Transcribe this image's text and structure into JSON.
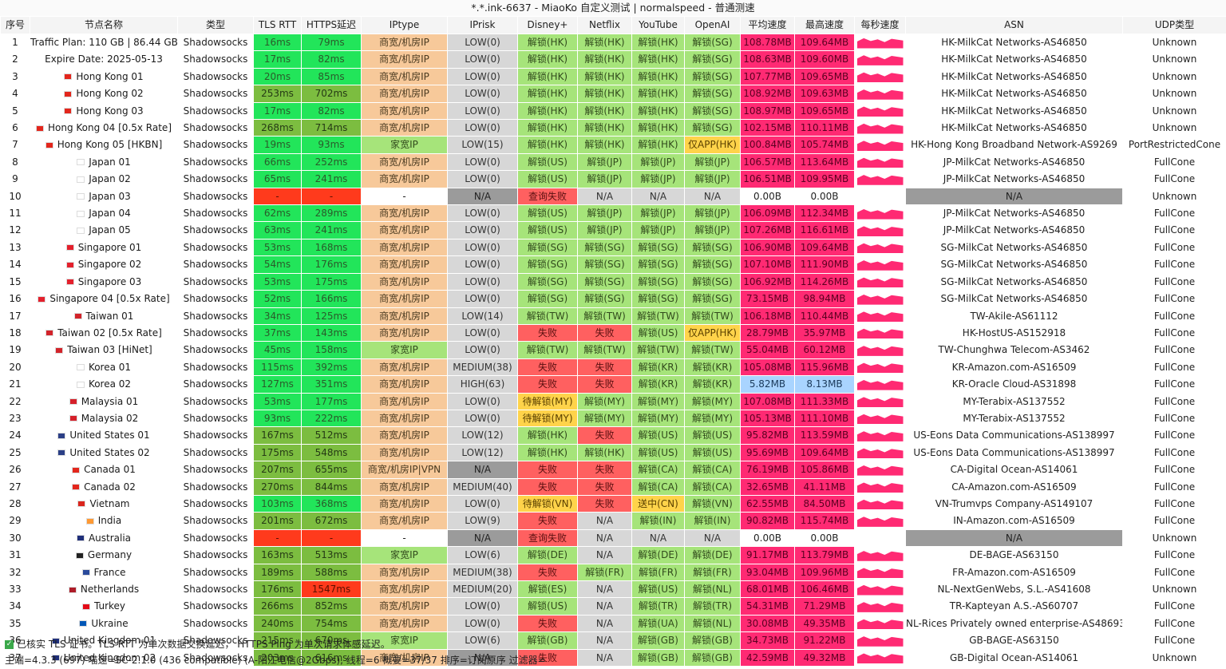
{
  "window_title": "*.*.ink-6637 - MiaoKo 自定义测试 | normalspeed - 普通测速",
  "columns": [
    "序号",
    "节点名称",
    "类型",
    "TLS RTT",
    "HTTPS延迟",
    "IPtype",
    "IPrisk",
    "Disney+",
    "Netflix",
    "YouTube",
    "OpenAI",
    "平均速度",
    "最高速度",
    "每秒速度",
    "ASN",
    "UDP类型"
  ],
  "rows": [
    {
      "idx": "1",
      "name": "Traffic Plan: 110 GB | 86.44 GB",
      "type": "Shadowsocks",
      "tls": "16ms",
      "https": "79ms",
      "iptype": "商宽/机房IP",
      "iprisk": "LOW(0)",
      "disney": "解锁(HK)",
      "netflix": "解锁(HK)",
      "youtube": "解锁(HK)",
      "openai": "解锁(SG)",
      "avg": "108.78MB",
      "max": "109.64MB",
      "asn": "HK-MilkCat Networks-AS46850",
      "udp": "Unknown"
    },
    {
      "idx": "2",
      "name": "Expire Date: 2025-05-13",
      "type": "Shadowsocks",
      "tls": "17ms",
      "https": "82ms",
      "iptype": "商宽/机房IP",
      "iprisk": "LOW(0)",
      "disney": "解锁(HK)",
      "netflix": "解锁(HK)",
      "youtube": "解锁(HK)",
      "openai": "解锁(SG)",
      "avg": "108.63MB",
      "max": "109.60MB",
      "asn": "HK-MilkCat Networks-AS46850",
      "udp": "Unknown"
    },
    {
      "idx": "3",
      "name": "Hong Kong 01",
      "type": "Shadowsocks",
      "tls": "20ms",
      "https": "85ms",
      "iptype": "商宽/机房IP",
      "iprisk": "LOW(0)",
      "disney": "解锁(HK)",
      "netflix": "解锁(HK)",
      "youtube": "解锁(HK)",
      "openai": "解锁(SG)",
      "avg": "107.77MB",
      "max": "109.65MB",
      "asn": "HK-MilkCat Networks-AS46850",
      "udp": "Unknown"
    },
    {
      "idx": "4",
      "name": "Hong Kong 02",
      "type": "Shadowsocks",
      "tls": "253ms",
      "https": "702ms",
      "iptype": "商宽/机房IP",
      "iprisk": "LOW(0)",
      "disney": "解锁(HK)",
      "netflix": "解锁(HK)",
      "youtube": "解锁(HK)",
      "openai": "解锁(SG)",
      "avg": "108.92MB",
      "max": "109.63MB",
      "asn": "HK-MilkCat Networks-AS46850",
      "udp": "Unknown"
    },
    {
      "idx": "5",
      "name": "Hong Kong 03",
      "type": "Shadowsocks",
      "tls": "17ms",
      "https": "82ms",
      "iptype": "商宽/机房IP",
      "iprisk": "LOW(0)",
      "disney": "解锁(HK)",
      "netflix": "解锁(HK)",
      "youtube": "解锁(HK)",
      "openai": "解锁(SG)",
      "avg": "108.97MB",
      "max": "109.65MB",
      "asn": "HK-MilkCat Networks-AS46850",
      "udp": "Unknown"
    },
    {
      "idx": "6",
      "name": "Hong Kong 04 [0.5x Rate]",
      "type": "Shadowsocks",
      "tls": "268ms",
      "https": "714ms",
      "iptype": "商宽/机房IP",
      "iprisk": "LOW(0)",
      "disney": "解锁(HK)",
      "netflix": "解锁(HK)",
      "youtube": "解锁(HK)",
      "openai": "解锁(SG)",
      "avg": "102.15MB",
      "max": "110.11MB",
      "asn": "HK-MilkCat Networks-AS46850",
      "udp": "Unknown"
    },
    {
      "idx": "7",
      "name": "Hong Kong 05 [HKBN]",
      "type": "Shadowsocks",
      "tls": "19ms",
      "https": "93ms",
      "iptype": "家宽IP",
      "iprisk": "LOW(15)",
      "disney": "解锁(HK)",
      "netflix": "解锁(HK)",
      "youtube": "解锁(HK)",
      "openai": "仅APP(HK)",
      "avg": "100.84MB",
      "max": "105.74MB",
      "asn": "HK-Hong Kong Broadband Network-AS9269",
      "udp": "PortRestrictedCone"
    },
    {
      "idx": "8",
      "name": "Japan 01",
      "type": "Shadowsocks",
      "tls": "66ms",
      "https": "252ms",
      "iptype": "商宽/机房IP",
      "iprisk": "LOW(0)",
      "disney": "解锁(US)",
      "netflix": "解锁(JP)",
      "youtube": "解锁(JP)",
      "openai": "解锁(JP)",
      "avg": "106.57MB",
      "max": "113.64MB",
      "asn": "JP-MilkCat Networks-AS46850",
      "udp": "FullCone"
    },
    {
      "idx": "9",
      "name": "Japan 02",
      "type": "Shadowsocks",
      "tls": "65ms",
      "https": "241ms",
      "iptype": "商宽/机房IP",
      "iprisk": "LOW(0)",
      "disney": "解锁(US)",
      "netflix": "解锁(JP)",
      "youtube": "解锁(JP)",
      "openai": "解锁(JP)",
      "avg": "106.51MB",
      "max": "109.95MB",
      "asn": "JP-MilkCat Networks-AS46850",
      "udp": "FullCone"
    },
    {
      "idx": "10",
      "name": "Japan 03",
      "type": "Shadowsocks",
      "tls": "-",
      "https": "-",
      "iptype": "-",
      "iprisk": "N/A",
      "disney": "查询失败",
      "netflix": "N/A",
      "youtube": "N/A",
      "openai": "N/A",
      "avg": "0.00B",
      "max": "0.00B",
      "asn": "N/A",
      "udp": "Unknown"
    },
    {
      "idx": "11",
      "name": "Japan 04",
      "type": "Shadowsocks",
      "tls": "62ms",
      "https": "289ms",
      "iptype": "商宽/机房IP",
      "iprisk": "LOW(0)",
      "disney": "解锁(US)",
      "netflix": "解锁(JP)",
      "youtube": "解锁(JP)",
      "openai": "解锁(JP)",
      "avg": "106.09MB",
      "max": "112.34MB",
      "asn": "JP-MilkCat Networks-AS46850",
      "udp": "FullCone"
    },
    {
      "idx": "12",
      "name": "Japan 05",
      "type": "Shadowsocks",
      "tls": "63ms",
      "https": "241ms",
      "iptype": "商宽/机房IP",
      "iprisk": "LOW(0)",
      "disney": "解锁(US)",
      "netflix": "解锁(JP)",
      "youtube": "解锁(JP)",
      "openai": "解锁(JP)",
      "avg": "107.26MB",
      "max": "116.61MB",
      "asn": "JP-MilkCat Networks-AS46850",
      "udp": "FullCone"
    },
    {
      "idx": "13",
      "name": "Singapore 01",
      "type": "Shadowsocks",
      "tls": "53ms",
      "https": "168ms",
      "iptype": "商宽/机房IP",
      "iprisk": "LOW(0)",
      "disney": "解锁(SG)",
      "netflix": "解锁(SG)",
      "youtube": "解锁(SG)",
      "openai": "解锁(SG)",
      "avg": "106.90MB",
      "max": "109.64MB",
      "asn": "SG-MilkCat Networks-AS46850",
      "udp": "FullCone"
    },
    {
      "idx": "14",
      "name": "Singapore 02",
      "type": "Shadowsocks",
      "tls": "54ms",
      "https": "176ms",
      "iptype": "商宽/机房IP",
      "iprisk": "LOW(0)",
      "disney": "解锁(SG)",
      "netflix": "解锁(SG)",
      "youtube": "解锁(SG)",
      "openai": "解锁(SG)",
      "avg": "107.10MB",
      "max": "111.90MB",
      "asn": "SG-MilkCat Networks-AS46850",
      "udp": "FullCone"
    },
    {
      "idx": "15",
      "name": "Singapore 03",
      "type": "Shadowsocks",
      "tls": "53ms",
      "https": "175ms",
      "iptype": "商宽/机房IP",
      "iprisk": "LOW(0)",
      "disney": "解锁(SG)",
      "netflix": "解锁(SG)",
      "youtube": "解锁(SG)",
      "openai": "解锁(SG)",
      "avg": "106.92MB",
      "max": "114.26MB",
      "asn": "SG-MilkCat Networks-AS46850",
      "udp": "FullCone"
    },
    {
      "idx": "16",
      "name": "Singapore 04 [0.5x Rate]",
      "type": "Shadowsocks",
      "tls": "52ms",
      "https": "166ms",
      "iptype": "商宽/机房IP",
      "iprisk": "LOW(0)",
      "disney": "解锁(SG)",
      "netflix": "解锁(SG)",
      "youtube": "解锁(SG)",
      "openai": "解锁(SG)",
      "avg": "73.15MB",
      "max": "98.94MB",
      "asn": "SG-MilkCat Networks-AS46850",
      "udp": "FullCone"
    },
    {
      "idx": "17",
      "name": "Taiwan 01",
      "type": "Shadowsocks",
      "tls": "34ms",
      "https": "125ms",
      "iptype": "商宽/机房IP",
      "iprisk": "LOW(14)",
      "disney": "解锁(TW)",
      "netflix": "解锁(TW)",
      "youtube": "解锁(TW)",
      "openai": "解锁(TW)",
      "avg": "106.18MB",
      "max": "110.44MB",
      "asn": "TW-Akile-AS61112",
      "udp": "FullCone"
    },
    {
      "idx": "18",
      "name": "Taiwan 02 [0.5x Rate]",
      "type": "Shadowsocks",
      "tls": "37ms",
      "https": "143ms",
      "iptype": "商宽/机房IP",
      "iprisk": "LOW(0)",
      "disney": "失败",
      "netflix": "失败",
      "youtube": "解锁(US)",
      "openai": "仅APP(HK)",
      "avg": "28.79MB",
      "max": "35.97MB",
      "asn": "HK-HostUS-AS152918",
      "udp": "FullCone"
    },
    {
      "idx": "19",
      "name": "Taiwan 03 [HiNet]",
      "type": "Shadowsocks",
      "tls": "45ms",
      "https": "158ms",
      "iptype": "家宽IP",
      "iprisk": "LOW(0)",
      "disney": "解锁(TW)",
      "netflix": "解锁(TW)",
      "youtube": "解锁(TW)",
      "openai": "解锁(TW)",
      "avg": "55.04MB",
      "max": "60.12MB",
      "asn": "TW-Chunghwa Telecom-AS3462",
      "udp": "FullCone"
    },
    {
      "idx": "20",
      "name": "Korea 01",
      "type": "Shadowsocks",
      "tls": "115ms",
      "https": "392ms",
      "iptype": "商宽/机房IP",
      "iprisk": "MEDIUM(38)",
      "disney": "失败",
      "netflix": "失败",
      "youtube": "解锁(KR)",
      "openai": "解锁(KR)",
      "avg": "105.08MB",
      "max": "115.96MB",
      "asn": "KR-Amazon.com-AS16509",
      "udp": "FullCone"
    },
    {
      "idx": "21",
      "name": "Korea 02",
      "type": "Shadowsocks",
      "tls": "127ms",
      "https": "351ms",
      "iptype": "商宽/机房IP",
      "iprisk": "HIGH(63)",
      "disney": "失败",
      "netflix": "失败",
      "youtube": "解锁(KR)",
      "openai": "解锁(KR)",
      "avg": "5.82MB",
      "max": "8.13MB",
      "asn": "KR-Oracle Cloud-AS31898",
      "udp": "FullCone"
    },
    {
      "idx": "22",
      "name": "Malaysia 01",
      "type": "Shadowsocks",
      "tls": "53ms",
      "https": "177ms",
      "iptype": "商宽/机房IP",
      "iprisk": "LOW(0)",
      "disney": "待解锁(MY)",
      "netflix": "解锁(MY)",
      "youtube": "解锁(MY)",
      "openai": "解锁(MY)",
      "avg": "107.08MB",
      "max": "111.33MB",
      "asn": "MY-Terabix-AS137552",
      "udp": "FullCone"
    },
    {
      "idx": "23",
      "name": "Malaysia 02",
      "type": "Shadowsocks",
      "tls": "93ms",
      "https": "222ms",
      "iptype": "商宽/机房IP",
      "iprisk": "LOW(0)",
      "disney": "待解锁(MY)",
      "netflix": "解锁(MY)",
      "youtube": "解锁(MY)",
      "openai": "解锁(MY)",
      "avg": "105.13MB",
      "max": "111.10MB",
      "asn": "MY-Terabix-AS137552",
      "udp": "FullCone"
    },
    {
      "idx": "24",
      "name": "United States 01",
      "type": "Shadowsocks",
      "tls": "167ms",
      "https": "512ms",
      "iptype": "商宽/机房IP",
      "iprisk": "LOW(12)",
      "disney": "解锁(HK)",
      "netflix": "失败",
      "youtube": "解锁(US)",
      "openai": "解锁(US)",
      "avg": "95.82MB",
      "max": "113.59MB",
      "asn": "US-Eons Data Communications-AS138997",
      "udp": "FullCone"
    },
    {
      "idx": "25",
      "name": "United States 02",
      "type": "Shadowsocks",
      "tls": "175ms",
      "https": "548ms",
      "iptype": "商宽/机房IP",
      "iprisk": "LOW(12)",
      "disney": "解锁(HK)",
      "netflix": "解锁(HK)",
      "youtube": "解锁(US)",
      "openai": "解锁(US)",
      "avg": "95.69MB",
      "max": "109.64MB",
      "asn": "US-Eons Data Communications-AS138997",
      "udp": "FullCone"
    },
    {
      "idx": "26",
      "name": "Canada 01",
      "type": "Shadowsocks",
      "tls": "207ms",
      "https": "655ms",
      "iptype": "商宽/机房IP|VPN",
      "iprisk": "N/A",
      "disney": "失败",
      "netflix": "失败",
      "youtube": "解锁(CA)",
      "openai": "解锁(CA)",
      "avg": "76.19MB",
      "max": "105.86MB",
      "asn": "CA-Digital Ocean-AS14061",
      "udp": "FullCone"
    },
    {
      "idx": "27",
      "name": "Canada 02",
      "type": "Shadowsocks",
      "tls": "270ms",
      "https": "844ms",
      "iptype": "商宽/机房IP",
      "iprisk": "MEDIUM(40)",
      "disney": "失败",
      "netflix": "失败",
      "youtube": "解锁(CA)",
      "openai": "解锁(CA)",
      "avg": "32.65MB",
      "max": "41.11MB",
      "asn": "CA-Amazon.com-AS16509",
      "udp": "FullCone"
    },
    {
      "idx": "28",
      "name": "Vietnam",
      "type": "Shadowsocks",
      "tls": "103ms",
      "https": "368ms",
      "iptype": "商宽/机房IP",
      "iprisk": "LOW(0)",
      "disney": "待解锁(VN)",
      "netflix": "失败",
      "youtube": "送中(CN)",
      "openai": "解锁(VN)",
      "avg": "62.55MB",
      "max": "84.50MB",
      "asn": "VN-Trumvps Company-AS149107",
      "udp": "FullCone"
    },
    {
      "idx": "29",
      "name": "India",
      "type": "Shadowsocks",
      "tls": "201ms",
      "https": "672ms",
      "iptype": "商宽/机房IP",
      "iprisk": "LOW(9)",
      "disney": "失败",
      "netflix": "N/A",
      "youtube": "解锁(IN)",
      "openai": "解锁(IN)",
      "avg": "90.82MB",
      "max": "115.74MB",
      "asn": "IN-Amazon.com-AS16509",
      "udp": "FullCone"
    },
    {
      "idx": "30",
      "name": "Australia",
      "type": "Shadowsocks",
      "tls": "-",
      "https": "-",
      "iptype": "-",
      "iprisk": "N/A",
      "disney": "查询失败",
      "netflix": "N/A",
      "youtube": "N/A",
      "openai": "N/A",
      "avg": "0.00B",
      "max": "0.00B",
      "asn": "N/A",
      "udp": "Unknown"
    },
    {
      "idx": "31",
      "name": "Germany",
      "type": "Shadowsocks",
      "tls": "163ms",
      "https": "513ms",
      "iptype": "家宽IP",
      "iprisk": "LOW(6)",
      "disney": "解锁(DE)",
      "netflix": "N/A",
      "youtube": "解锁(DE)",
      "openai": "解锁(DE)",
      "avg": "91.17MB",
      "max": "113.79MB",
      "asn": "DE-BAGE-AS63150",
      "udp": "FullCone"
    },
    {
      "idx": "32",
      "name": "France",
      "type": "Shadowsocks",
      "tls": "189ms",
      "https": "588ms",
      "iptype": "商宽/机房IP",
      "iprisk": "MEDIUM(38)",
      "disney": "失败",
      "netflix": "解锁(FR)",
      "youtube": "解锁(FR)",
      "openai": "解锁(FR)",
      "avg": "93.04MB",
      "max": "109.96MB",
      "asn": "FR-Amazon.com-AS16509",
      "udp": "FullCone"
    },
    {
      "idx": "33",
      "name": "Netherlands",
      "type": "Shadowsocks",
      "tls": "176ms",
      "https": "1547ms",
      "iptype": "商宽/机房IP",
      "iprisk": "MEDIUM(20)",
      "disney": "解锁(ES)",
      "netflix": "N/A",
      "youtube": "解锁(US)",
      "openai": "解锁(NL)",
      "avg": "68.01MB",
      "max": "106.46MB",
      "asn": "NL-NextGenWebs, S.L.-AS41608",
      "udp": "Unknown"
    },
    {
      "idx": "34",
      "name": "Turkey",
      "type": "Shadowsocks",
      "tls": "266ms",
      "https": "852ms",
      "iptype": "商宽/机房IP",
      "iprisk": "LOW(0)",
      "disney": "解锁(US)",
      "netflix": "N/A",
      "youtube": "解锁(TR)",
      "openai": "解锁(TR)",
      "avg": "54.31MB",
      "max": "71.29MB",
      "asn": "TR-Kapteyan A.S.-AS60707",
      "udp": "FullCone"
    },
    {
      "idx": "35",
      "name": "Ukraine",
      "type": "Shadowsocks",
      "tls": "240ms",
      "https": "754ms",
      "iptype": "商宽/机房IP",
      "iprisk": "LOW(0)",
      "disney": "失败",
      "netflix": "N/A",
      "youtube": "解锁(UA)",
      "openai": "解锁(NL)",
      "avg": "30.08MB",
      "max": "49.35MB",
      "asn": "NL-Rices Privately owned enterprise-AS48693",
      "udp": "FullCone"
    },
    {
      "idx": "36",
      "name": "United Kingdom 01",
      "type": "Shadowsocks",
      "tls": "215ms",
      "https": "670ms",
      "iptype": "家宽IP",
      "iprisk": "LOW(6)",
      "disney": "解锁(GB)",
      "netflix": "N/A",
      "youtube": "解锁(GB)",
      "openai": "解锁(GB)",
      "avg": "34.73MB",
      "max": "91.22MB",
      "asn": "GB-BAGE-AS63150",
      "udp": "FullCone"
    },
    {
      "idx": "37",
      "name": "United Kingdom 02",
      "type": "Shadowsocks",
      "tls": "203ms",
      "https": "616ms",
      "iptype": "商宽/机房IP",
      "iprisk": "N/A",
      "disney": "失败",
      "netflix": "N/A",
      "youtube": "解锁(GB)",
      "openai": "解锁(GB)",
      "avg": "42.59MB",
      "max": "49.32MB",
      "asn": "GB-Digital Ocean-AS14061",
      "udp": "Unknown"
    }
  ],
  "footer": {
    "line1": "已核实 TLS 证书。TLS RTT 为单次数据交换延迟， HTTPS Ping 为单次请求体感延迟。",
    "line2": "主端=4.3.3 (697) 喵速=SC-2.1.0 (436 compatible) (A-阳江电信@2Gbps), 线程=6 概要=37/37 排序=订阅原序 过滤器="
  },
  "colors": {
    "latency_good": "#22e55a",
    "latency_mid": "#6fcf4f",
    "latency_bad": "#ff3a1c",
    "iptype_idc": "#f7c99a",
    "iptype_home": "#a6e47a",
    "unlock": "#a6e47a",
    "fail": "#ff6060",
    "pending": "#ffd34a",
    "na": "#d7d7d7",
    "speed": "#ff2a73",
    "speed_low": "#a9d4ff"
  }
}
